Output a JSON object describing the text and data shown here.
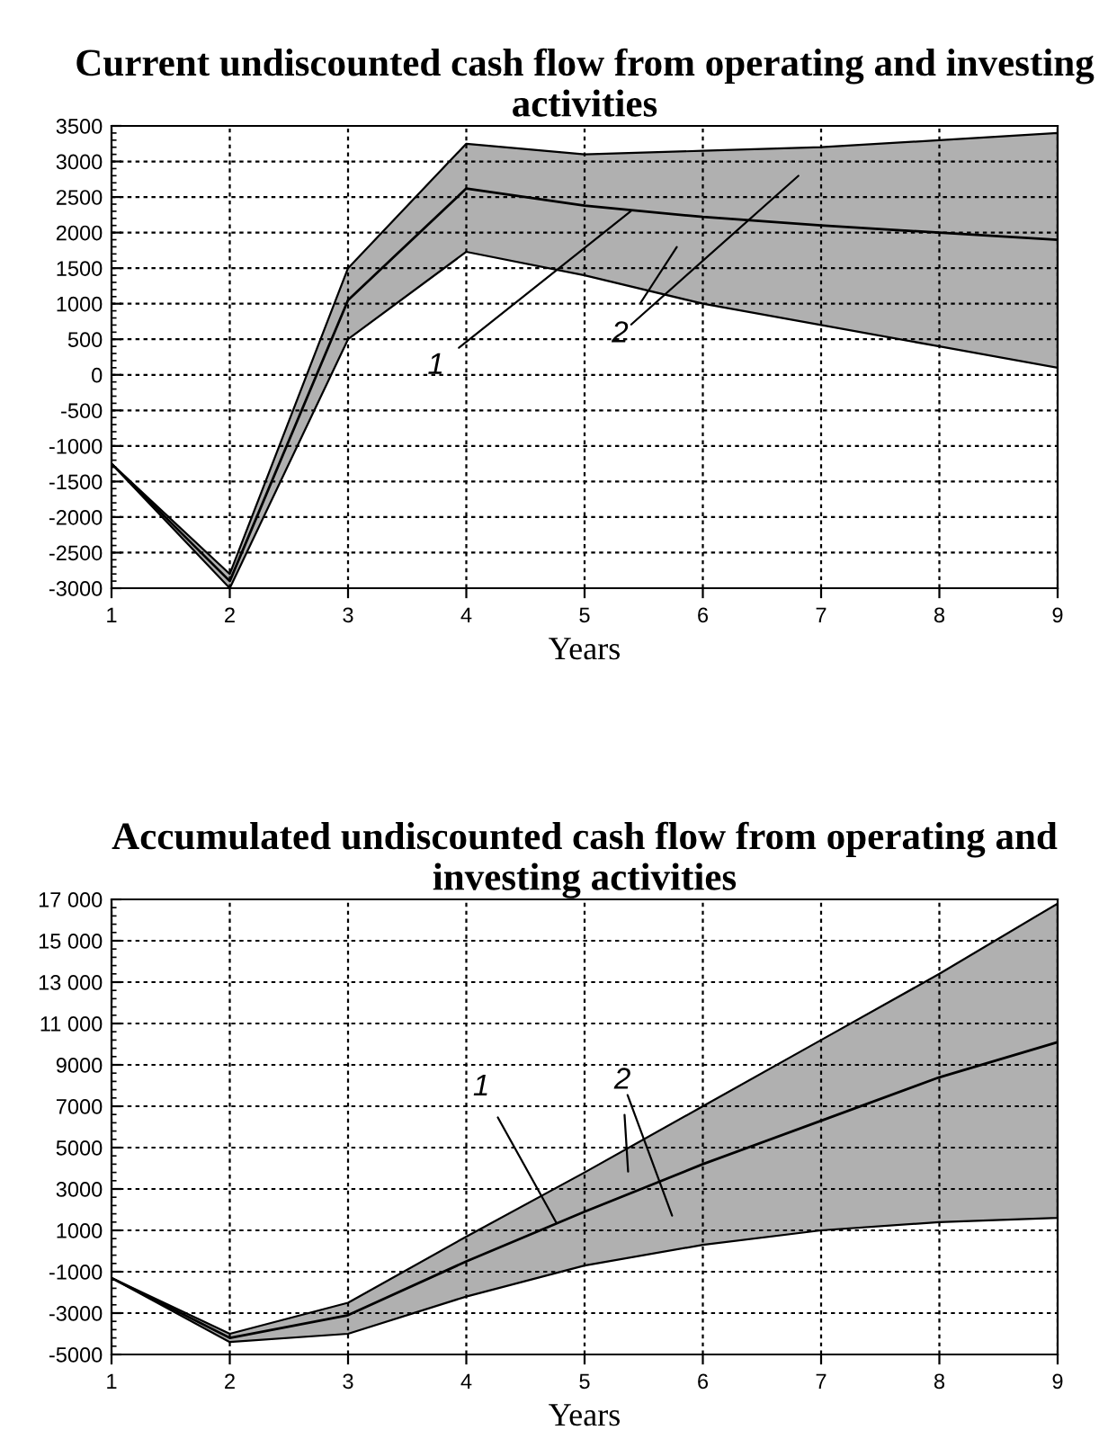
{
  "chart_data": [
    {
      "type": "line",
      "title": "Current undiscounted cash flow from operating and investing activities",
      "xlabel": "Years",
      "x": [
        1,
        2,
        3,
        4,
        5,
        6,
        7,
        8,
        9
      ],
      "series": [
        {
          "color": "#000000",
          "values": [
            -1250,
            -2900,
            1050,
            2620,
            2380,
            2220,
            2100,
            2000,
            1900
          ],
          "lower": [
            -1250,
            -3000,
            500,
            1730,
            1400,
            1000,
            700,
            400,
            100
          ],
          "upper": [
            -1250,
            -2800,
            1500,
            3250,
            3100,
            3150,
            3200,
            3300,
            3400
          ]
        }
      ],
      "annotations": [
        {
          "text": "1",
          "x": 5.39,
          "y": 2300
        },
        "2"
      ],
      "xlim": [
        1,
        9
      ],
      "xticks": [
        1,
        2,
        3,
        4,
        5,
        6,
        7,
        8,
        9
      ],
      "ylim": [
        -3000,
        3500
      ],
      "yticks": [
        -3000,
        -2500,
        -2000,
        -1500,
        -1000,
        -500,
        0,
        500,
        1000,
        1500,
        2000,
        2500,
        3000,
        3500
      ],
      "grid": true,
      "line_style": "solid",
      "marker": "none"
    },
    {
      "type": "line",
      "title": "Accumulated undiscounted cash flow from operating and investing activities",
      "xlabel": "Years",
      "x": [
        1,
        2,
        3,
        4,
        5,
        6,
        7,
        8,
        9
      ],
      "series": [
        {
          "color": "#000000",
          "values": [
            -1300,
            -4200,
            -3100,
            -500,
            1900,
            4200,
            6300,
            8400,
            10100
          ],
          "lower": [
            -1300,
            -4400,
            -4000,
            -2200,
            -700,
            300,
            1000,
            1400,
            1600
          ],
          "upper": [
            -1300,
            -4000,
            -2500,
            700,
            3800,
            7000,
            10200,
            13400,
            16800
          ]
        }
      ],
      "annotations": [
        {
          "text": "1",
          "x": 4.76,
          "y": 1380
        },
        "2"
      ],
      "xlim": [
        1,
        9
      ],
      "xticks": [
        1,
        2,
        3,
        4,
        5,
        6,
        7,
        8,
        9
      ],
      "ylim": [
        -5000,
        17000
      ],
      "yticks": [
        -5000,
        -3000,
        -1000,
        1000,
        3000,
        5000,
        7000,
        9000,
        {
          "value": 11000,
          "label": "11 000"
        },
        {
          "value": 13000,
          "label": "13 000"
        },
        {
          "value": 15000,
          "label": "15 000"
        },
        {
          "value": 17000,
          "label": "17 000"
        }
      ],
      "grid": true,
      "line_style": "solid",
      "marker": "none"
    }
  ]
}
